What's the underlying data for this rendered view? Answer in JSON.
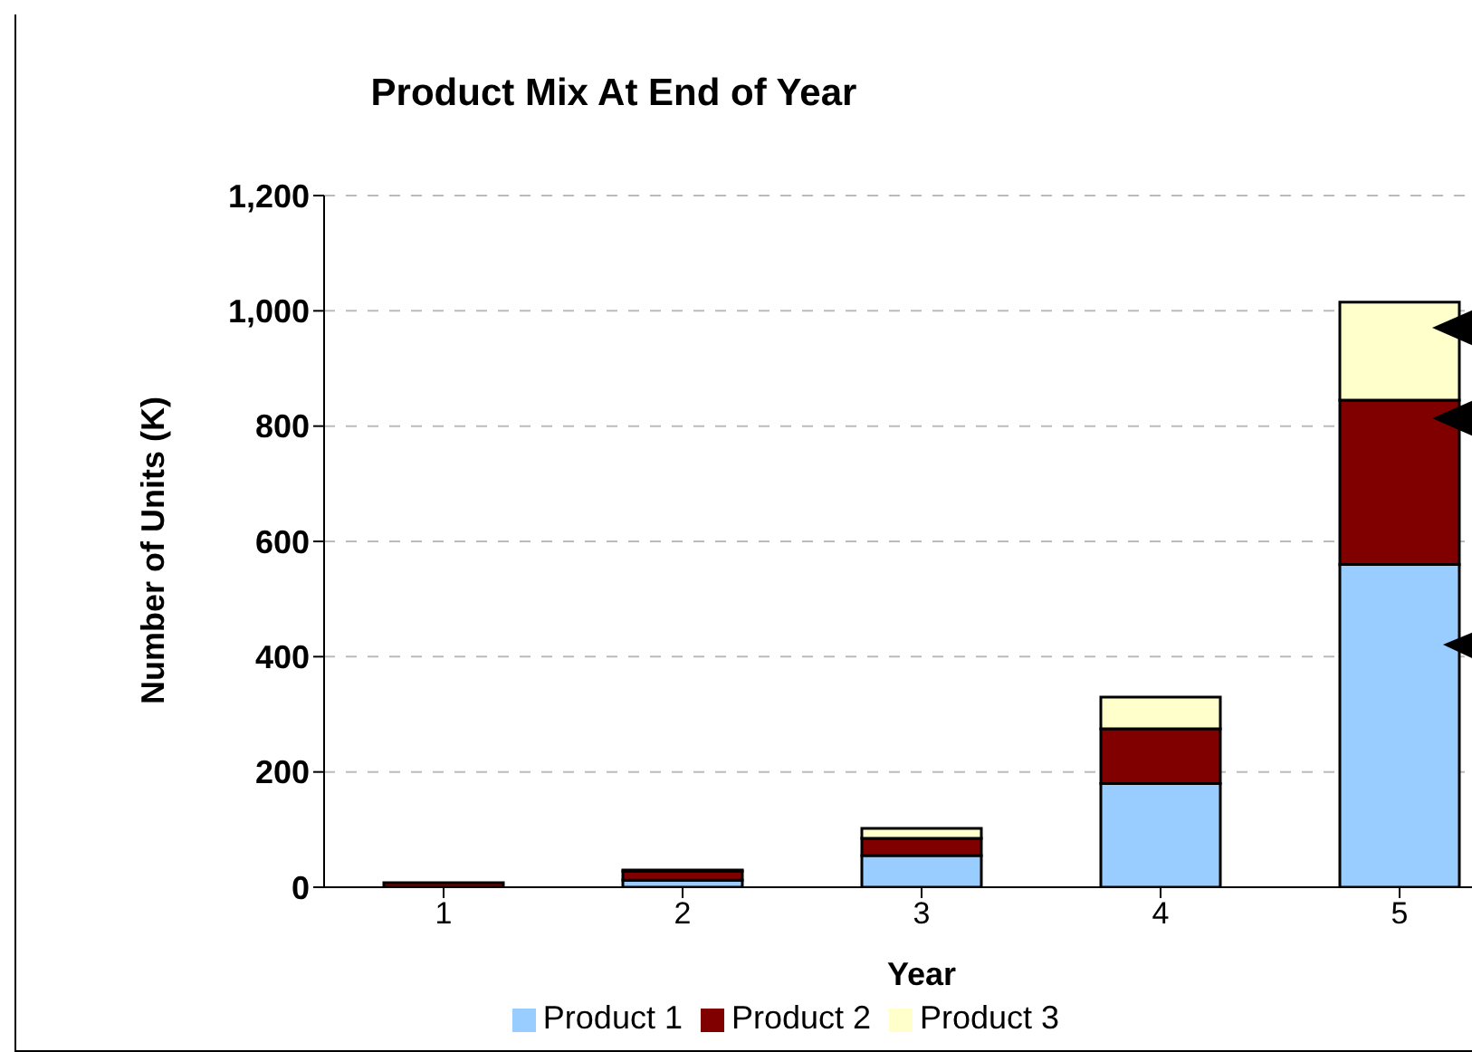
{
  "chart_data": {
    "type": "bar",
    "title": "Product Mix At End of Year",
    "xlabel": "Year",
    "ylabel": "Number of Units (K)",
    "categories": [
      "1",
      "2",
      "3",
      "4",
      "5"
    ],
    "stacked": true,
    "series": [
      {
        "name": "Product 1",
        "color": "#99ccff",
        "values": [
          null,
          12,
          55,
          180,
          560
        ]
      },
      {
        "name": "Product 2",
        "color": "#800000",
        "values": [
          8,
          16,
          30,
          95,
          285
        ]
      },
      {
        "name": "Product 3",
        "color": "#ffffcc",
        "values": [
          null,
          2,
          17,
          55,
          170
        ]
      }
    ],
    "ylim": [
      0,
      1200
    ],
    "yticks": [
      {
        "value": 0,
        "label": "0"
      },
      {
        "value": 200,
        "label": "200"
      },
      {
        "value": 400,
        "label": "400"
      },
      {
        "value": 600,
        "label": "600"
      },
      {
        "value": 800,
        "label": "800"
      },
      {
        "value": 1000,
        "label": "1,000"
      },
      {
        "value": 1200,
        "label": "1,200"
      }
    ],
    "grid": "y",
    "legend": "bottom"
  }
}
